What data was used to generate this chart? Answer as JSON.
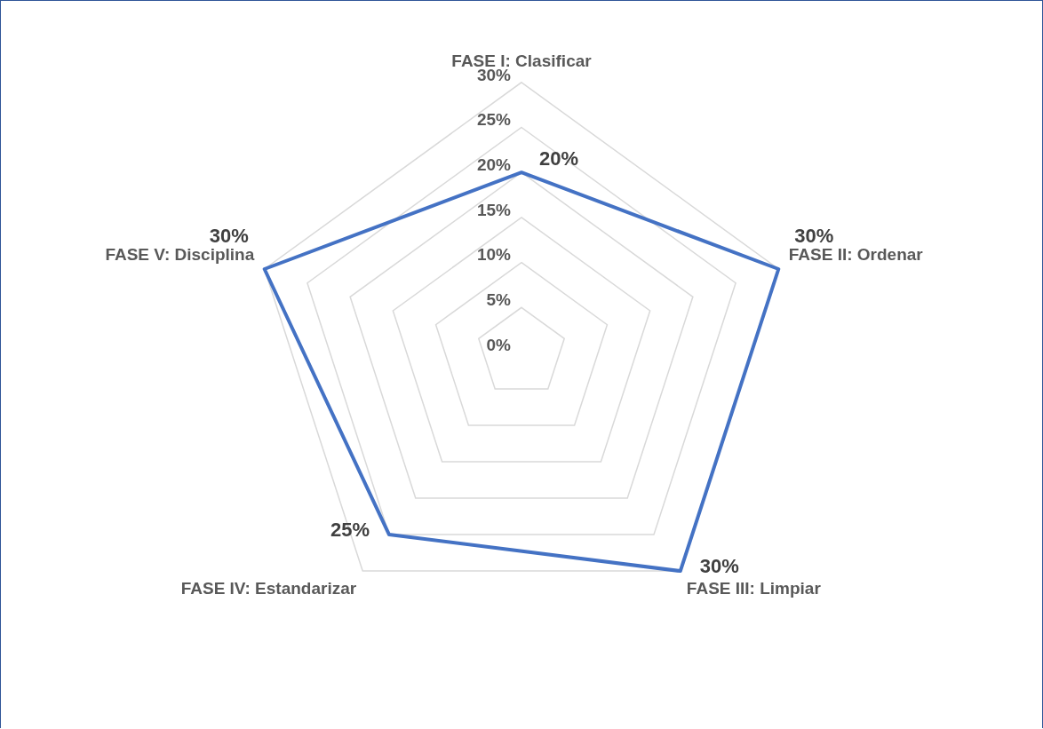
{
  "chart_data": {
    "type": "radar",
    "categories": [
      "FASE I: Clasificar",
      "FASE II: Ordenar",
      "FASE III: Limpiar",
      "FASE IV: Estandarizar",
      "FASE V: Disciplina"
    ],
    "series": [
      {
        "color": "#4472c4",
        "values": [
          20,
          30,
          30,
          25,
          30
        ],
        "value_labels": [
          "20%",
          "30%",
          "30%",
          "25%",
          "30%"
        ]
      }
    ],
    "ylim": [
      0,
      30
    ],
    "yticks": [
      {
        "value": 0,
        "label": "0%"
      },
      {
        "value": 5,
        "label": "5%"
      },
      {
        "value": 10,
        "label": "10%"
      },
      {
        "value": 15,
        "label": "15%"
      },
      {
        "value": 20,
        "label": "20%"
      },
      {
        "value": 25,
        "label": "25%"
      },
      {
        "value": 30,
        "label": "30%"
      }
    ],
    "grid": true,
    "legend": false,
    "marker": "none"
  }
}
